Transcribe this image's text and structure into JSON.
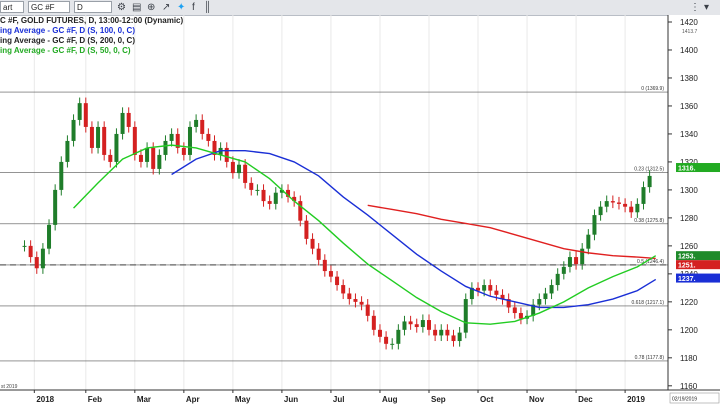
{
  "toolbar": {
    "tab_label": "art",
    "symbol": "GC #F",
    "interval": "D",
    "icons": [
      "settings-icon",
      "chart-icon",
      "zoom-icon",
      "share-icon",
      "twitter-icon",
      "facebook-icon",
      "bar-chart-icon",
      "candle-icon",
      "layout-icon",
      "crosshair-icon",
      "dropdown-icon",
      "menu-icon"
    ]
  },
  "colors": {
    "price_axis_bg": "#ffffff",
    "ma100": "#1a2fd6",
    "ma200": "#e02020",
    "ma50": "#22cc22",
    "candle_up": "#1f7d2a",
    "candle_down": "#d42020",
    "last_price": "#22aa22"
  },
  "titles": {
    "main": "C #F, GOLD FUTURES, D, 13:00-12:00 (Dynamic)",
    "ma100": "ing Average - GC #F, D (S, 100, 0, C)",
    "ma200": "ing Average - GC #F, D (S, 200, 0, C)",
    "ma50": "ing Average - GC #F, D (S, 50, 0, C)"
  },
  "chart_data": {
    "type": "candlestick",
    "y_ticks": [
      "1160",
      "1180",
      "1200",
      "1220",
      "1240",
      "1260",
      "1280",
      "1300",
      "1320",
      "1340",
      "1360",
      "1380",
      "1400",
      "1420"
    ],
    "top_label": "1413.7",
    "ylim": [
      1157,
      1425
    ],
    "x_labels": [
      {
        "label": "2018",
        "x": 0.8
      },
      {
        "label": "Feb",
        "x": 5.0
      },
      {
        "label": "Mar",
        "x": 9.0
      },
      {
        "label": "Apr",
        "x": 13.0
      },
      {
        "label": "May",
        "x": 17.0
      },
      {
        "label": "Jun",
        "x": 21.0
      },
      {
        "label": "Jul",
        "x": 25.0
      },
      {
        "label": "Aug",
        "x": 29.0
      },
      {
        "label": "Sep",
        "x": 33.0
      },
      {
        "label": "Oct",
        "x": 37.0
      },
      {
        "label": "Nov",
        "x": 41.0
      },
      {
        "label": "Dec",
        "x": 45.0
      },
      {
        "label": "2019",
        "x": 49.0
      }
    ],
    "xlim": [
      -2,
      52.5
    ],
    "start_label": "st 2019",
    "end_date": "02/19/2019",
    "fib_levels": [
      {
        "label": "0 (1369.9)",
        "value": 1369.9
      },
      {
        "label": "0.23 (1312.5)",
        "value": 1312.5
      },
      {
        "label": "0.38 (1275.8)",
        "value": 1275.8
      },
      {
        "label": "0.5 (1246.4)",
        "value": 1246.4
      },
      {
        "label": "0.618 (1217.1)",
        "value": 1217.1
      },
      {
        "label": "0.78 (1177.8)",
        "value": 1177.8
      }
    ],
    "price_badges": [
      {
        "label": "1316.",
        "value": 1316,
        "color": "#22aa22"
      },
      {
        "label": "1253.",
        "value": 1253,
        "color": "#1f8a2a"
      },
      {
        "label": "1251.",
        "value": 1251,
        "color": "#d42020"
      },
      {
        "label": "1237.",
        "value": 1237,
        "color": "#1a2fd6"
      }
    ],
    "dashed_level": 1246.4,
    "closes": [
      [
        0,
        1260
      ],
      [
        0.5,
        1252
      ],
      [
        1,
        1244
      ],
      [
        1.5,
        1258
      ],
      [
        2,
        1275
      ],
      [
        2.5,
        1300
      ],
      [
        3,
        1320
      ],
      [
        3.5,
        1335
      ],
      [
        4,
        1350
      ],
      [
        4.5,
        1362
      ],
      [
        5,
        1345
      ],
      [
        5.5,
        1330
      ],
      [
        6,
        1345
      ],
      [
        6.5,
        1325
      ],
      [
        7,
        1320
      ],
      [
        7.5,
        1340
      ],
      [
        8,
        1355
      ],
      [
        8.5,
        1345
      ],
      [
        9,
        1325
      ],
      [
        9.5,
        1320
      ],
      [
        10,
        1330
      ],
      [
        10.5,
        1315
      ],
      [
        11,
        1325
      ],
      [
        11.5,
        1335
      ],
      [
        12,
        1340
      ],
      [
        12.5,
        1330
      ],
      [
        13,
        1325
      ],
      [
        13.5,
        1345
      ],
      [
        14,
        1350
      ],
      [
        14.5,
        1340
      ],
      [
        15,
        1335
      ],
      [
        15.5,
        1325
      ],
      [
        16,
        1330
      ],
      [
        16.5,
        1320
      ],
      [
        17,
        1312
      ],
      [
        17.5,
        1318
      ],
      [
        18,
        1305
      ],
      [
        18.5,
        1300
      ],
      [
        19,
        1300
      ],
      [
        19.5,
        1292
      ],
      [
        20,
        1290
      ],
      [
        20.5,
        1298
      ],
      [
        21,
        1300
      ],
      [
        21.5,
        1295
      ],
      [
        22,
        1292
      ],
      [
        22.5,
        1278
      ],
      [
        23,
        1265
      ],
      [
        23.5,
        1258
      ],
      [
        24,
        1250
      ],
      [
        24.5,
        1242
      ],
      [
        25,
        1238
      ],
      [
        25.5,
        1232
      ],
      [
        26,
        1226
      ],
      [
        26.5,
        1222
      ],
      [
        27,
        1220
      ],
      [
        27.5,
        1218
      ],
      [
        28,
        1210
      ],
      [
        28.5,
        1200
      ],
      [
        29,
        1195
      ],
      [
        29.5,
        1190
      ],
      [
        30,
        1190
      ],
      [
        30.5,
        1200
      ],
      [
        31,
        1206
      ],
      [
        31.5,
        1204
      ],
      [
        32,
        1202
      ],
      [
        32.5,
        1207
      ],
      [
        33,
        1200
      ],
      [
        33.5,
        1196
      ],
      [
        34,
        1200
      ],
      [
        34.5,
        1196
      ],
      [
        35,
        1192
      ],
      [
        35.5,
        1198
      ],
      [
        36,
        1222
      ],
      [
        36.5,
        1230
      ],
      [
        37,
        1228
      ],
      [
        37.5,
        1232
      ],
      [
        38,
        1228
      ],
      [
        38.5,
        1225
      ],
      [
        39,
        1222
      ],
      [
        39.5,
        1216
      ],
      [
        40,
        1212
      ],
      [
        40.5,
        1208
      ],
      [
        41,
        1210
      ],
      [
        41.5,
        1218
      ],
      [
        42,
        1222
      ],
      [
        42.5,
        1226
      ],
      [
        43,
        1232
      ],
      [
        43.5,
        1240
      ],
      [
        44,
        1245
      ],
      [
        44.5,
        1252
      ],
      [
        45,
        1247
      ],
      [
        45.5,
        1258
      ],
      [
        46,
        1268
      ],
      [
        46.5,
        1282
      ],
      [
        47,
        1288
      ],
      [
        47.5,
        1292
      ],
      [
        48,
        1291
      ],
      [
        48.5,
        1290
      ],
      [
        49,
        1288
      ],
      [
        49.5,
        1284
      ],
      [
        50,
        1290
      ],
      [
        50.5,
        1302
      ],
      [
        51,
        1310
      ]
    ],
    "ma100": [
      [
        12,
        1311
      ],
      [
        14,
        1322
      ],
      [
        16,
        1328
      ],
      [
        18,
        1328
      ],
      [
        20,
        1326
      ],
      [
        22,
        1320
      ],
      [
        24,
        1310
      ],
      [
        26,
        1295
      ],
      [
        28,
        1282
      ],
      [
        30,
        1268
      ],
      [
        32,
        1254
      ],
      [
        34,
        1242
      ],
      [
        36,
        1231
      ],
      [
        38,
        1224
      ],
      [
        40,
        1220
      ],
      [
        42,
        1216
      ],
      [
        44,
        1216
      ],
      [
        46,
        1218
      ],
      [
        48,
        1222
      ],
      [
        50,
        1228
      ],
      [
        51.5,
        1236
      ]
    ],
    "ma200": [
      [
        28,
        1289
      ],
      [
        30,
        1286
      ],
      [
        32,
        1283
      ],
      [
        34,
        1279
      ],
      [
        36,
        1276
      ],
      [
        38,
        1273
      ],
      [
        40,
        1268
      ],
      [
        42,
        1263
      ],
      [
        44,
        1258
      ],
      [
        46,
        1255
      ],
      [
        48,
        1253
      ],
      [
        50,
        1252
      ],
      [
        51.5,
        1251
      ]
    ],
    "ma50": [
      [
        4,
        1287
      ],
      [
        6,
        1305
      ],
      [
        8,
        1322
      ],
      [
        10,
        1330
      ],
      [
        12,
        1332
      ],
      [
        14,
        1330
      ],
      [
        16,
        1325
      ],
      [
        18,
        1320
      ],
      [
        20,
        1308
      ],
      [
        22,
        1292
      ],
      [
        24,
        1278
      ],
      [
        26,
        1262
      ],
      [
        28,
        1247
      ],
      [
        30,
        1235
      ],
      [
        32,
        1223
      ],
      [
        34,
        1213
      ],
      [
        36,
        1205
      ],
      [
        38,
        1204
      ],
      [
        40,
        1206
      ],
      [
        42,
        1212
      ],
      [
        44,
        1220
      ],
      [
        46,
        1230
      ],
      [
        48,
        1238
      ],
      [
        50,
        1245
      ],
      [
        51.5,
        1253
      ]
    ]
  }
}
